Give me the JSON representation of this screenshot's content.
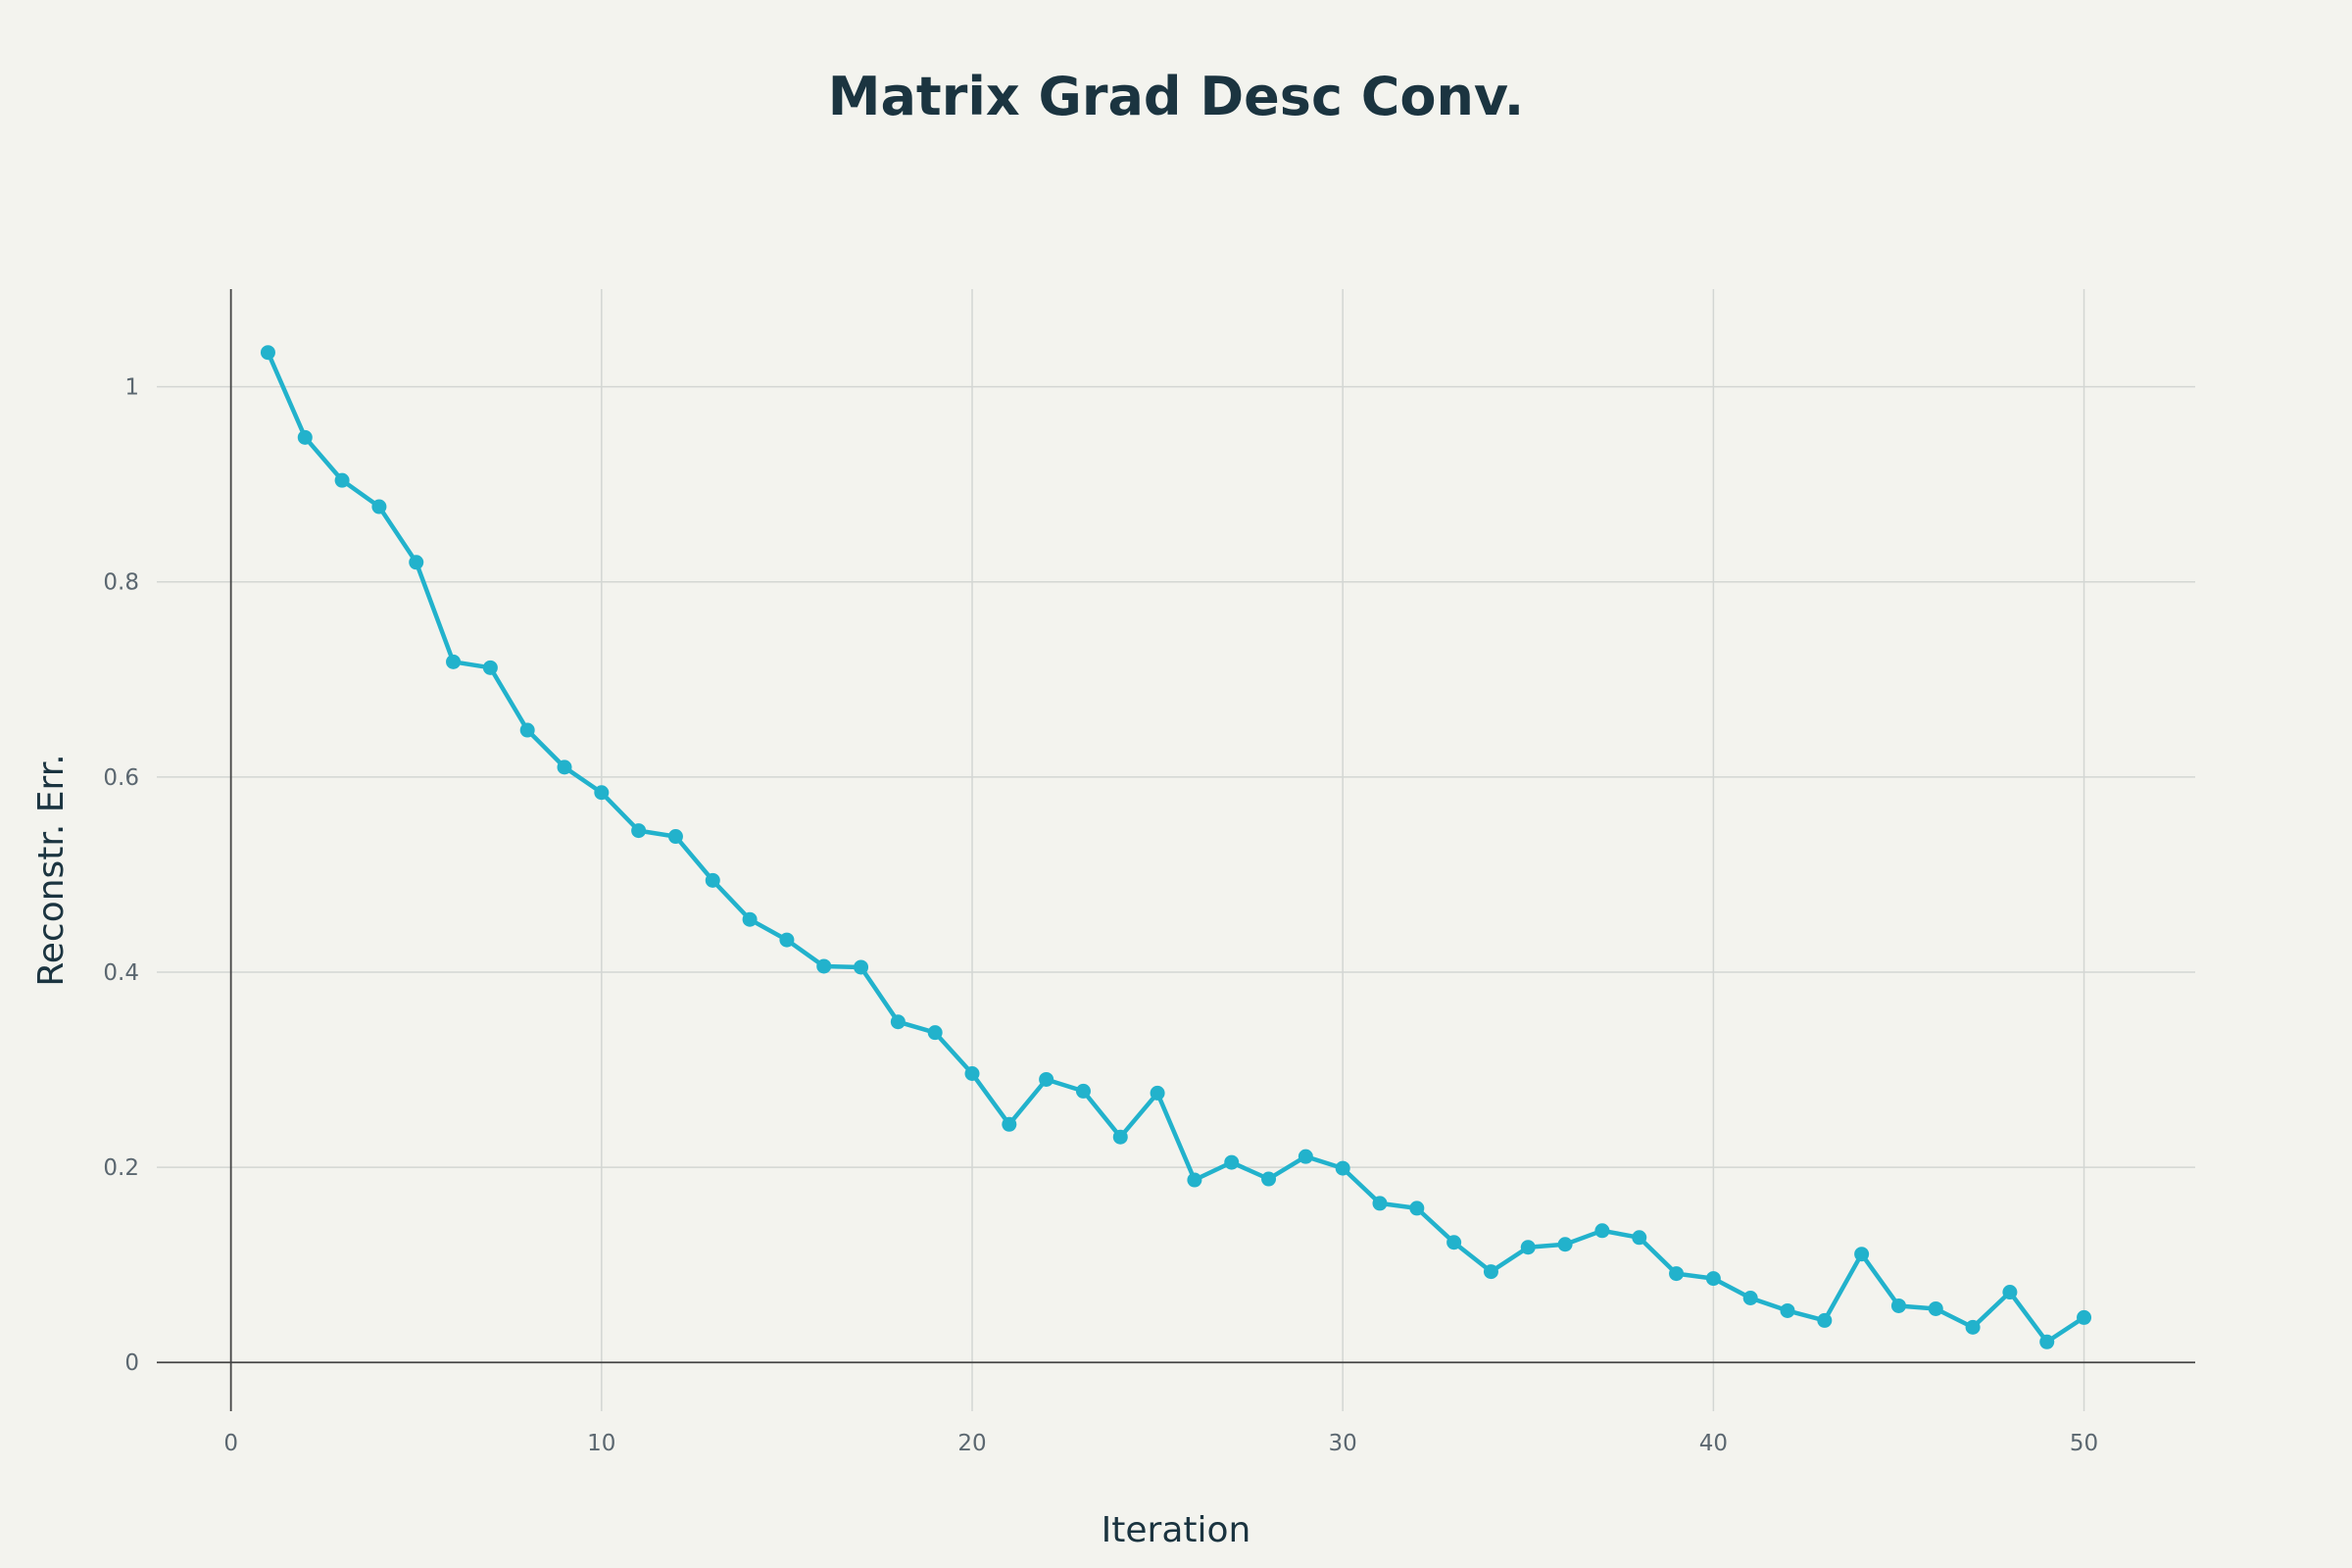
{
  "chart_data": {
    "type": "line",
    "title": "Matrix Grad Desc Conv.",
    "xlabel": "Iteration",
    "ylabel": "Reconstr. Err.",
    "xlim": [
      -2,
      53
    ],
    "ylim": [
      -0.05,
      1.1
    ],
    "x_ticks": [
      0,
      10,
      20,
      30,
      40,
      50
    ],
    "x_tick_labels": [
      "0",
      "10",
      "20",
      "30",
      "40",
      "50"
    ],
    "y_ticks": [
      0,
      0.2,
      0.4,
      0.6,
      0.8,
      1
    ],
    "y_tick_labels": [
      "0",
      "0.2",
      "0.4",
      "0.6",
      "0.8",
      "1"
    ],
    "grid": true,
    "legend": "none",
    "colors": {
      "line": "#22b2cc",
      "grid": "#d3d6d3",
      "zero_line": "#444444",
      "background": "#f3f3ee"
    },
    "series": [
      {
        "x": [
          1,
          2,
          3,
          4,
          5,
          6,
          7,
          8,
          9,
          10,
          11,
          12,
          13,
          14,
          15,
          16,
          17,
          18,
          19,
          20,
          21,
          22,
          23,
          24,
          25,
          26,
          27,
          28,
          29,
          30,
          31,
          32,
          33,
          34,
          35,
          36,
          37,
          38,
          39,
          40,
          41,
          42,
          43,
          44,
          45,
          46,
          47,
          48,
          49,
          50
        ],
        "values": [
          1.035,
          0.948,
          0.904,
          0.877,
          0.82,
          0.718,
          0.712,
          0.648,
          0.61,
          0.584,
          0.545,
          0.539,
          0.494,
          0.454,
          0.433,
          0.406,
          0.405,
          0.349,
          0.338,
          0.296,
          0.244,
          0.29,
          0.278,
          0.231,
          0.276,
          0.187,
          0.205,
          0.188,
          0.211,
          0.199,
          0.163,
          0.158,
          0.123,
          0.093,
          0.118,
          0.121,
          0.135,
          0.128,
          0.091,
          0.086,
          0.066,
          0.053,
          0.043,
          0.111,
          0.058,
          0.055,
          0.036,
          0.072,
          0.021,
          0.046
        ]
      }
    ]
  }
}
